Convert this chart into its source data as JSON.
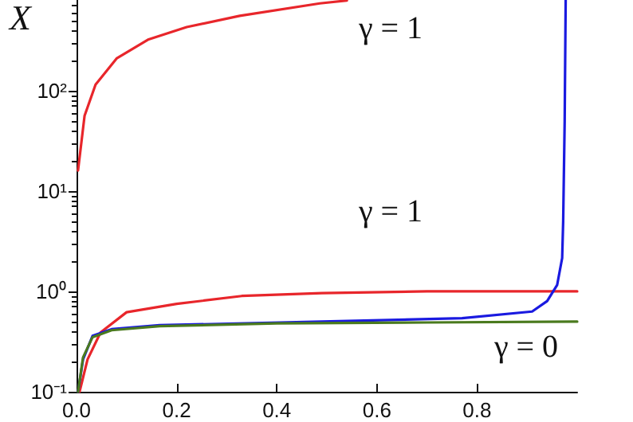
{
  "chart_data": {
    "type": "line",
    "ylabel": "X",
    "log": "y",
    "grid": false,
    "marker": "none",
    "line_style": "solid",
    "xlim": [
      0,
      1
    ],
    "xticks": [
      {
        "value": 0,
        "label": "0.0"
      },
      0.2,
      0.4,
      0.6,
      0.8
    ],
    "ylim": [
      0.1,
      800
    ],
    "yticks": [
      {
        "value": 0.1,
        "label": "10⁻¹"
      },
      {
        "value": 1,
        "label": "10⁰"
      },
      {
        "value": 10,
        "label": "10¹"
      },
      {
        "value": 100,
        "label": "10²"
      }
    ],
    "series": [
      {
        "color": "#e8262b",
        "x": [
          0.003,
          0.016,
          0.038,
          0.08,
          0.144,
          0.22,
          0.326,
          0.486,
          0.54
        ],
        "values": [
          16,
          56,
          115,
          209,
          324,
          430,
          557,
          740,
          790
        ]
      },
      {
        "color": "#e8262b",
        "x": [
          0.006,
          0.022,
          0.048,
          0.1,
          0.2,
          0.33,
          0.49,
          0.7,
          1.0
        ],
        "values": [
          0.1,
          0.21,
          0.39,
          0.62,
          0.75,
          0.9,
          0.96,
          1.0,
          1.0
        ]
      },
      {
        "color": "#1a1ae0",
        "x": [
          0.003,
          0.013,
          0.032,
          0.07,
          0.166,
          0.49,
          0.77,
          0.91,
          0.94,
          0.96,
          0.97,
          0.972,
          0.975,
          0.977
        ],
        "values": [
          0.1,
          0.21,
          0.36,
          0.42,
          0.46,
          0.5,
          0.54,
          0.63,
          0.8,
          1.16,
          2.15,
          5,
          50,
          800
        ]
      },
      {
        "color": "#4a7a1e",
        "x": [
          0.003,
          0.013,
          0.032,
          0.07,
          0.166,
          0.4,
          0.7,
          1.0
        ],
        "values": [
          0.1,
          0.22,
          0.35,
          0.41,
          0.45,
          0.48,
          0.49,
          0.5
        ]
      }
    ],
    "annotations": [
      "γ = 1",
      "γ = 1",
      "γ = 0"
    ]
  }
}
